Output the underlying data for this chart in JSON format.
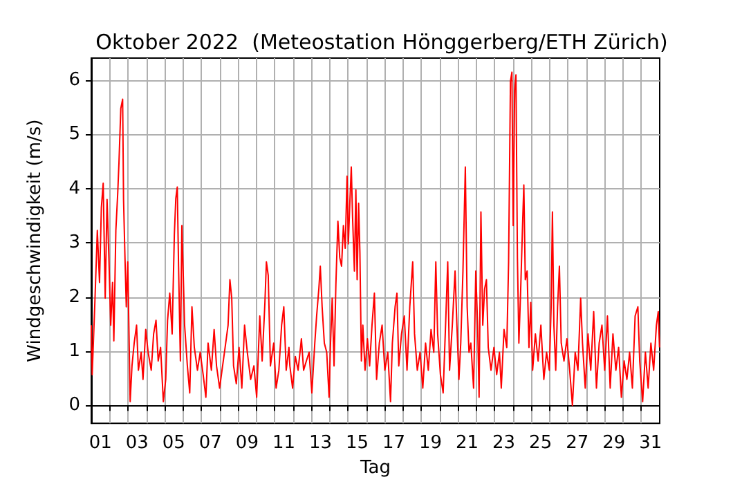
{
  "chart_data": {
    "type": "line",
    "title": "Oktober 2022  (Meteostation Hönggerberg/ETH Zürich)",
    "xlabel": "Tag",
    "ylabel": "Windgeschwindigkeit (m/s)",
    "grid": true,
    "marker": "none",
    "line_style": "solid",
    "xlim": [
      1,
      32
    ],
    "ylim": [
      -0.33,
      6.41
    ],
    "yticks": [
      0,
      1,
      2,
      3,
      4,
      5,
      6
    ],
    "xticks": [
      {
        "value": 1.5,
        "label": "01"
      },
      {
        "value": 3.5,
        "label": "03"
      },
      {
        "value": 5.5,
        "label": "05"
      },
      {
        "value": 7.5,
        "label": "07"
      },
      {
        "value": 9.5,
        "label": "09"
      },
      {
        "value": 11.5,
        "label": "11"
      },
      {
        "value": 13.5,
        "label": "13"
      },
      {
        "value": 15.5,
        "label": "15"
      },
      {
        "value": 17.5,
        "label": "17"
      },
      {
        "value": 19.5,
        "label": "19"
      },
      {
        "value": 21.5,
        "label": "21"
      },
      {
        "value": 23.5,
        "label": "23"
      },
      {
        "value": 25.5,
        "label": "25"
      },
      {
        "value": 27.5,
        "label": "27"
      },
      {
        "value": 29.5,
        "label": "29"
      },
      {
        "value": 31.5,
        "label": "31"
      },
      {
        "value": 2,
        "label": null
      },
      {
        "value": 3,
        "label": null
      },
      {
        "value": 4,
        "label": null
      },
      {
        "value": 5,
        "label": null
      },
      {
        "value": 6,
        "label": null
      },
      {
        "value": 7,
        "label": null
      },
      {
        "value": 8,
        "label": null
      },
      {
        "value": 9,
        "label": null
      },
      {
        "value": 10,
        "label": null
      },
      {
        "value": 11,
        "label": null
      },
      {
        "value": 12,
        "label": null
      },
      {
        "value": 13,
        "label": null
      },
      {
        "value": 14,
        "label": null
      },
      {
        "value": 15,
        "label": null
      },
      {
        "value": 16,
        "label": null
      },
      {
        "value": 17,
        "label": null
      },
      {
        "value": 18,
        "label": null
      },
      {
        "value": 19,
        "label": null
      },
      {
        "value": 20,
        "label": null
      },
      {
        "value": 21,
        "label": null
      },
      {
        "value": 22,
        "label": null
      },
      {
        "value": 23,
        "label": null
      },
      {
        "value": 24,
        "label": null
      },
      {
        "value": 25,
        "label": null
      },
      {
        "value": 26,
        "label": null
      },
      {
        "value": 27,
        "label": null
      },
      {
        "value": 28,
        "label": null
      },
      {
        "value": 29,
        "label": null
      },
      {
        "value": 30,
        "label": null
      },
      {
        "value": 31,
        "label": null
      }
    ],
    "series": [
      {
        "color": "#ff0000",
        "x": [
          1.0,
          1.05,
          1.2,
          1.33,
          1.45,
          1.55,
          1.65,
          1.76,
          1.86,
          1.96,
          2.06,
          2.16,
          2.23,
          2.34,
          2.44,
          2.51,
          2.61,
          2.71,
          2.76,
          2.84,
          2.91,
          2.99,
          3.07,
          3.12,
          3.22,
          3.34,
          3.47,
          3.57,
          3.72,
          3.82,
          3.97,
          4.1,
          4.27,
          4.4,
          4.53,
          4.65,
          4.78,
          4.93,
          5.06,
          5.16,
          5.28,
          5.41,
          5.53,
          5.61,
          5.69,
          5.76,
          5.86,
          5.94,
          6.01,
          6.09,
          6.24,
          6.37,
          6.49,
          6.62,
          6.79,
          6.94,
          7.1,
          7.25,
          7.37,
          7.55,
          7.7,
          7.83,
          8.0,
          8.13,
          8.3,
          8.46,
          8.56,
          8.66,
          8.76,
          8.91,
          9.06,
          9.21,
          9.36,
          9.51,
          9.69,
          9.87,
          10.02,
          10.19,
          10.32,
          10.47,
          10.55,
          10.65,
          10.77,
          10.95,
          11.08,
          11.23,
          11.38,
          11.5,
          11.63,
          11.78,
          11.83,
          11.98,
          12.13,
          12.28,
          12.46,
          12.58,
          12.73,
          12.88,
          13.03,
          13.19,
          13.29,
          13.41,
          13.49,
          13.59,
          13.71,
          13.84,
          13.97,
          14.04,
          14.14,
          14.24,
          14.34,
          14.45,
          14.55,
          14.65,
          14.75,
          14.85,
          14.95,
          15.02,
          15.1,
          15.18,
          15.25,
          15.35,
          15.43,
          15.5,
          15.58,
          15.65,
          15.73,
          15.81,
          15.93,
          16.06,
          16.18,
          16.31,
          16.44,
          16.56,
          16.71,
          16.86,
          17.01,
          17.17,
          17.32,
          17.42,
          17.57,
          17.67,
          17.77,
          17.92,
          18.07,
          18.22,
          18.37,
          18.53,
          18.63,
          18.78,
          18.93,
          19.08,
          19.23,
          19.38,
          19.53,
          19.68,
          19.79,
          19.89,
          20.04,
          20.19,
          20.34,
          20.44,
          20.54,
          20.69,
          20.84,
          20.94,
          21.05,
          21.15,
          21.27,
          21.4,
          21.5,
          21.6,
          21.7,
          21.85,
          21.97,
          22.07,
          22.15,
          22.25,
          22.35,
          22.45,
          22.55,
          22.65,
          22.8,
          22.96,
          23.11,
          23.26,
          23.36,
          23.51,
          23.66,
          23.76,
          23.86,
          23.94,
          24.01,
          24.09,
          24.16,
          24.24,
          24.32,
          24.42,
          24.52,
          24.59,
          24.67,
          24.77,
          24.87,
          24.97,
          25.07,
          25.22,
          25.37,
          25.52,
          25.68,
          25.83,
          25.98,
          26.08,
          26.15,
          26.23,
          26.33,
          26.43,
          26.53,
          26.63,
          26.78,
          26.94,
          27.09,
          27.24,
          27.39,
          27.54,
          27.69,
          27.79,
          27.94,
          28.09,
          28.24,
          28.4,
          28.55,
          28.7,
          28.85,
          29.0,
          29.15,
          29.3,
          29.45,
          29.61,
          29.76,
          29.91,
          30.06,
          30.21,
          30.36,
          30.51,
          30.66,
          30.81,
          30.91,
          31.07,
          31.22,
          31.37,
          31.52,
          31.67,
          31.82,
          31.92,
          31.99
        ],
        "values": [
          1.48,
          0.57,
          1.94,
          3.23,
          2.27,
          3.65,
          4.1,
          1.98,
          3.8,
          2.73,
          1.48,
          2.27,
          1.19,
          3.23,
          3.9,
          4.48,
          5.48,
          5.65,
          3.8,
          2.69,
          1.82,
          2.65,
          1.07,
          0.07,
          0.73,
          1.15,
          1.48,
          0.65,
          0.98,
          0.48,
          1.4,
          0.98,
          0.65,
          1.32,
          1.57,
          0.82,
          1.07,
          0.07,
          0.48,
          1.57,
          2.07,
          1.32,
          3.15,
          3.82,
          4.03,
          2.57,
          0.82,
          3.32,
          2.48,
          1.48,
          0.73,
          0.23,
          1.82,
          1.07,
          0.65,
          0.98,
          0.57,
          0.15,
          1.15,
          0.65,
          1.4,
          0.73,
          0.32,
          0.65,
          1.07,
          1.48,
          2.32,
          1.98,
          0.73,
          0.4,
          1.07,
          0.32,
          1.48,
          0.98,
          0.48,
          0.73,
          0.15,
          1.65,
          0.82,
          1.9,
          2.65,
          2.4,
          0.73,
          1.15,
          0.32,
          0.65,
          1.48,
          1.82,
          0.65,
          1.07,
          0.73,
          0.32,
          0.9,
          0.65,
          1.23,
          0.65,
          0.82,
          0.98,
          0.23,
          1.15,
          1.65,
          2.15,
          2.57,
          1.82,
          1.15,
          0.98,
          0.15,
          1.07,
          1.98,
          0.73,
          2.23,
          3.4,
          2.73,
          2.57,
          3.32,
          2.9,
          4.23,
          2.98,
          3.73,
          4.4,
          3.48,
          2.48,
          3.98,
          2.32,
          3.73,
          2.82,
          0.82,
          1.48,
          0.65,
          1.23,
          0.73,
          1.48,
          2.07,
          0.48,
          1.15,
          1.48,
          0.65,
          0.98,
          0.07,
          1.15,
          1.82,
          2.07,
          0.73,
          1.32,
          1.65,
          0.65,
          1.82,
          2.65,
          1.32,
          0.65,
          0.98,
          0.32,
          1.15,
          0.65,
          1.4,
          0.98,
          2.65,
          1.32,
          0.57,
          0.23,
          1.65,
          2.65,
          0.65,
          1.48,
          2.48,
          1.48,
          0.48,
          1.15,
          2.48,
          4.4,
          1.82,
          0.98,
          1.15,
          0.32,
          2.48,
          1.48,
          0.15,
          3.57,
          1.48,
          2.15,
          2.32,
          1.07,
          0.65,
          1.07,
          0.57,
          0.98,
          0.32,
          1.4,
          1.07,
          2.65,
          5.98,
          6.15,
          3.32,
          5.82,
          6.1,
          2.73,
          1.15,
          2.15,
          3.32,
          4.07,
          2.32,
          2.48,
          1.07,
          1.9,
          0.65,
          1.32,
          0.82,
          1.48,
          0.48,
          0.98,
          0.65,
          1.82,
          3.57,
          1.48,
          0.65,
          1.82,
          2.57,
          1.15,
          0.82,
          1.23,
          0.65,
          0.0,
          0.98,
          0.65,
          1.98,
          1.15,
          0.32,
          1.32,
          0.65,
          1.73,
          0.32,
          1.15,
          1.48,
          0.65,
          1.65,
          0.32,
          1.32,
          0.65,
          1.07,
          0.15,
          0.82,
          0.48,
          0.98,
          0.32,
          1.65,
          1.82,
          0.82,
          0.07,
          0.98,
          0.32,
          1.15,
          0.65,
          1.48,
          1.73,
          1.07
        ]
      }
    ]
  }
}
